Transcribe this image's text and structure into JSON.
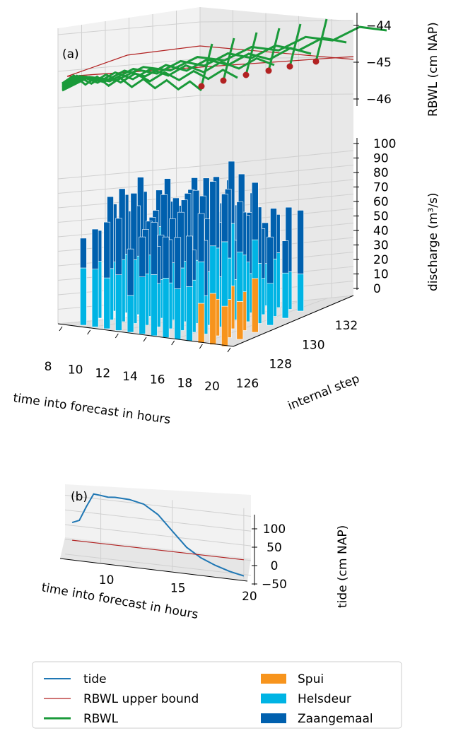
{
  "chart_data": [
    {
      "type": "bar",
      "panel_label": "(a)",
      "projection": "3d",
      "xlabel": "time into forecast in hours",
      "ylabel": "internal step",
      "zlabel_bottom": "discharge (m³/s)",
      "zlabel_top": "RBWL (cm NAP)",
      "x_ticks": [
        "8",
        "10",
        "12",
        "14",
        "16",
        "18",
        "20"
      ],
      "y_ticks": [
        "126",
        "128",
        "130",
        "132"
      ],
      "discharge_ticks": [
        "0",
        "10",
        "20",
        "30",
        "40",
        "50",
        "60",
        "70",
        "80",
        "90",
        "100"
      ],
      "rbwl_ticks": [
        "−44",
        "−45",
        "−46"
      ],
      "xlim": [
        8,
        20
      ],
      "ylim": [
        126,
        133
      ],
      "discharge_lim": [
        0,
        100
      ],
      "rbwl_lim": [
        -46.5,
        -43.8
      ],
      "rbwl_upper_bound": -45,
      "rbwl_final_values": [
        -45.4,
        -45.2,
        -45.0,
        -44.8,
        -44.6,
        -44.4
      ],
      "rbwl_steps": [
        127,
        128,
        129,
        130,
        131,
        132
      ],
      "bars": {
        "times": [
          8,
          9,
          10,
          11,
          12,
          13,
          14,
          15,
          16,
          17,
          18,
          19,
          20
        ],
        "steps": [
          127,
          128,
          129,
          130,
          131,
          132
        ],
        "series": [
          {
            "name": "Spui",
            "color": "#f7941d"
          },
          {
            "name": "Helsdeur",
            "color": "#00b4e4"
          },
          {
            "name": "Zaangemaal",
            "color": "#0060ae"
          }
        ]
      }
    },
    {
      "type": "line",
      "panel_label": "(b)",
      "projection": "3d",
      "xlabel": "time into forecast in hours",
      "zlabel": "tide (cm NAP)",
      "x_ticks": [
        "10",
        "15",
        "20"
      ],
      "z_ticks": [
        "100",
        "50",
        "0",
        "−50"
      ],
      "xlim": [
        7.5,
        20.5
      ],
      "zlim": [
        -65,
        175
      ],
      "series": [
        {
          "name": "tide",
          "color": "#1f77b4",
          "x": [
            8,
            8.5,
            9,
            9.5,
            10,
            10.5,
            11,
            12,
            13,
            14,
            15,
            16,
            17,
            18,
            19,
            20
          ],
          "y": [
            60,
            70,
            120,
            165,
            163,
            160,
            162,
            160,
            150,
            120,
            70,
            20,
            -10,
            -30,
            -45,
            -55
          ]
        },
        {
          "name": "RBWL upper bound",
          "color": "#b22222",
          "x": [
            8,
            20
          ],
          "y": [
            0,
            0
          ]
        }
      ]
    }
  ],
  "legend": {
    "placement": "bottom",
    "items": [
      {
        "label": "tide",
        "kind": "line",
        "color": "#1f77b4"
      },
      {
        "label": "RBWL upper bound",
        "kind": "thin-line",
        "color": "#b22222"
      },
      {
        "label": "RBWL",
        "kind": "thick-line",
        "color": "#1a9a3a"
      },
      {
        "label": "Spui",
        "kind": "patch",
        "color": "#f7941d"
      },
      {
        "label": "Helsdeur",
        "kind": "patch",
        "color": "#00b4e4"
      },
      {
        "label": "Zaangemaal",
        "kind": "patch",
        "color": "#0060ae"
      }
    ]
  }
}
